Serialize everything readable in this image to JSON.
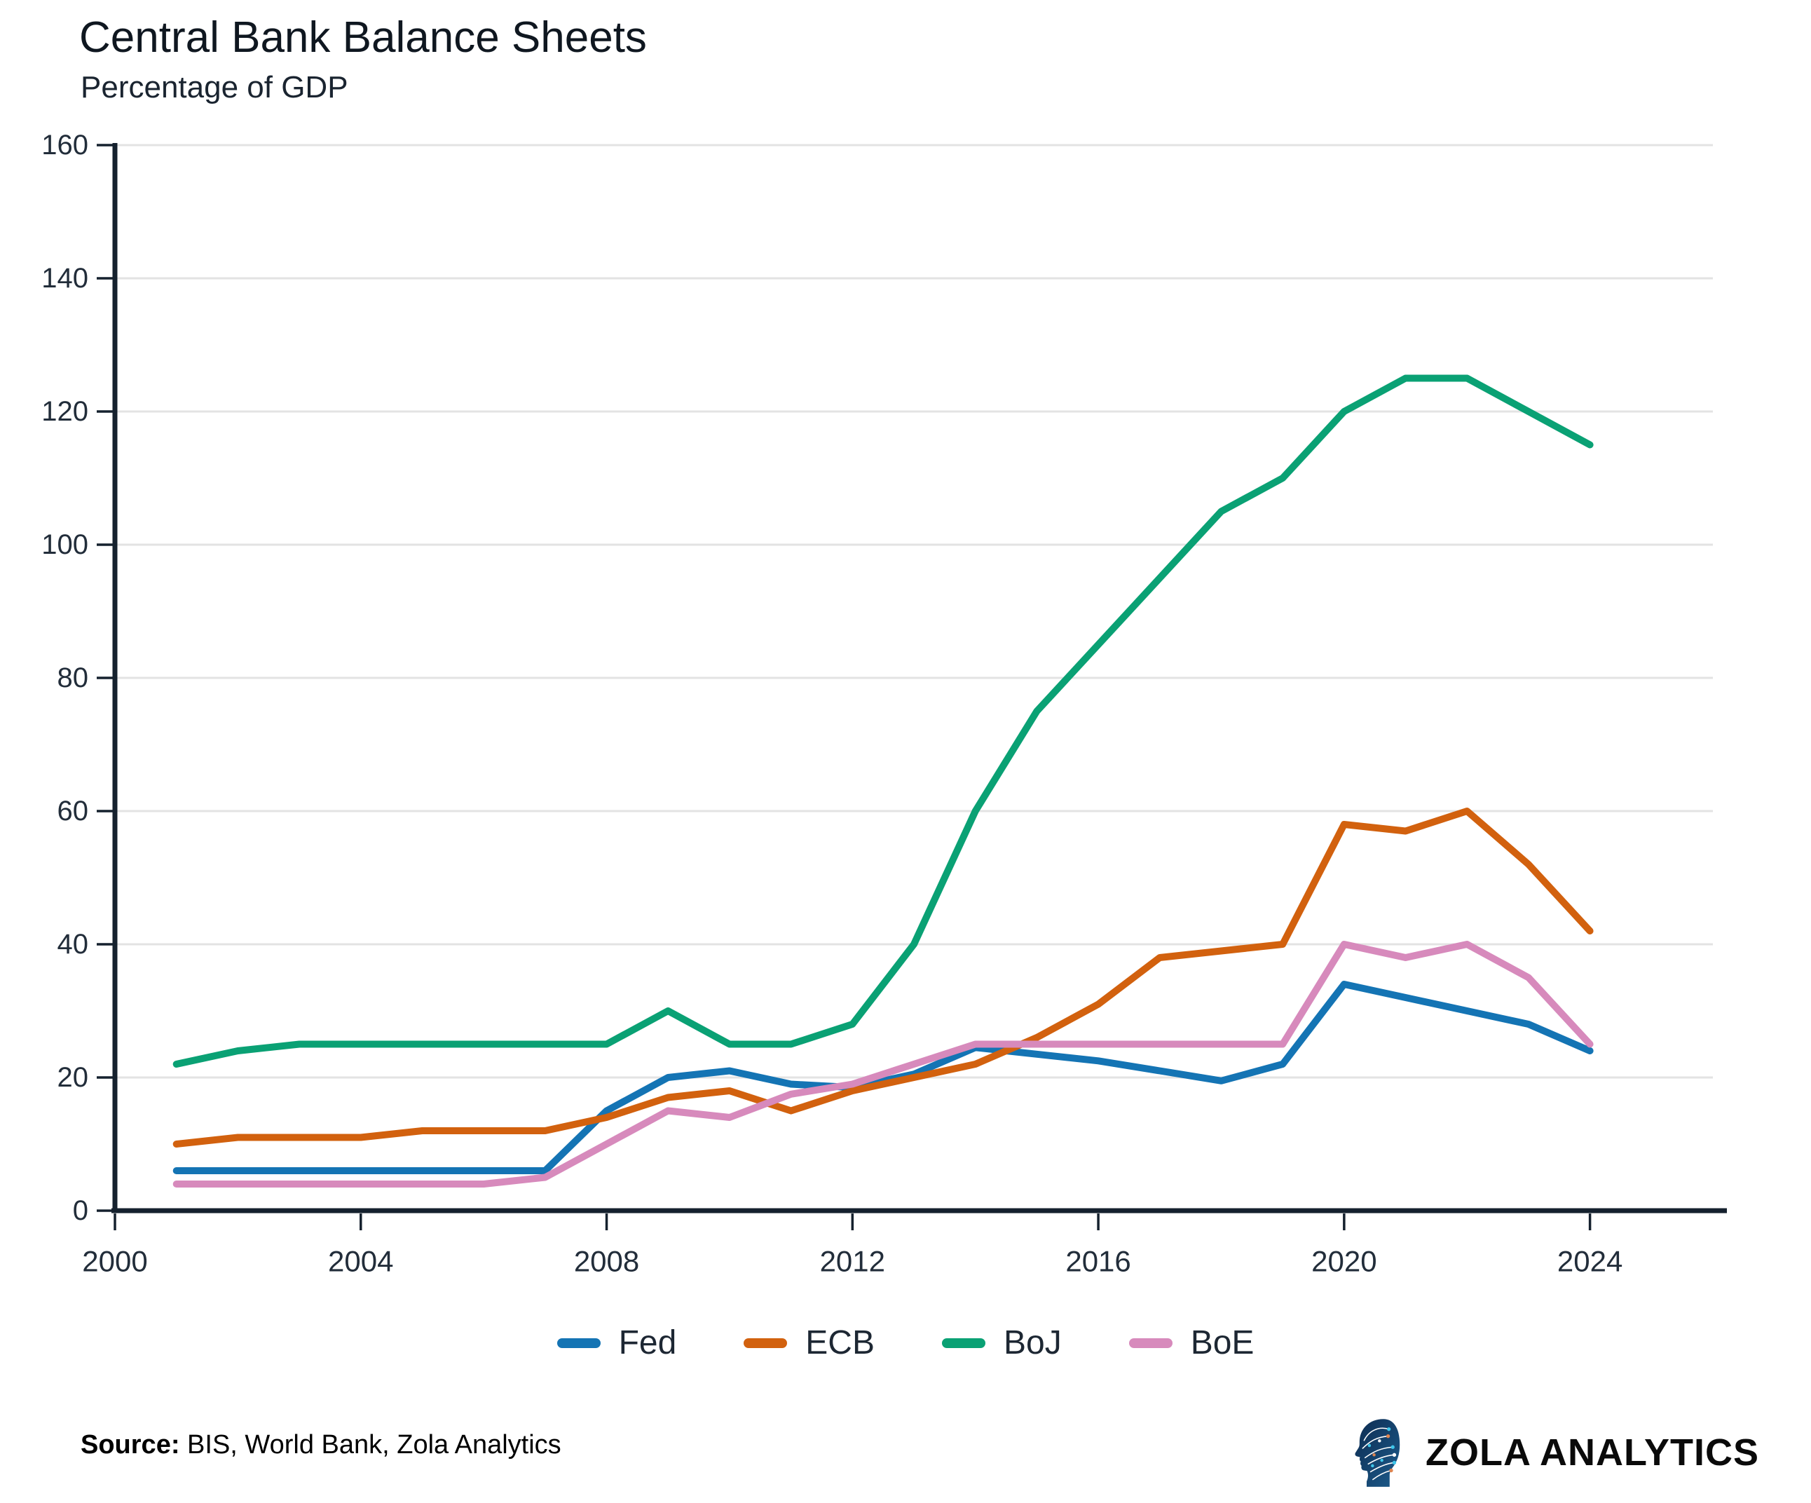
{
  "header": {
    "title": "Central Bank Balance Sheets",
    "subtitle": "Percentage of GDP"
  },
  "chart_data": {
    "type": "line",
    "x": [
      2001,
      2002,
      2003,
      2004,
      2005,
      2006,
      2007,
      2008,
      2009,
      2010,
      2011,
      2012,
      2013,
      2014,
      2015,
      2016,
      2017,
      2018,
      2019,
      2020,
      2021,
      2022,
      2023,
      2024
    ],
    "series": [
      {
        "name": "Fed",
        "color": "#1474b4",
        "values": [
          6,
          6,
          6,
          6,
          6,
          6,
          6,
          15,
          20,
          21,
          19,
          18.5,
          20.5,
          24.5,
          23.5,
          22.5,
          21,
          19.5,
          22,
          34,
          32,
          30,
          28,
          24
        ]
      },
      {
        "name": "ECB",
        "color": "#d2610e",
        "values": [
          10,
          11,
          11,
          11,
          12,
          12,
          12,
          14,
          17,
          18,
          15,
          18,
          20,
          22,
          26,
          31,
          38,
          39,
          40,
          58,
          57,
          60,
          52,
          42
        ]
      },
      {
        "name": "BoJ",
        "color": "#0aa174",
        "values": [
          22,
          24,
          25,
          25,
          25,
          25,
          25,
          25,
          30,
          25,
          25,
          28,
          40,
          60,
          75,
          85,
          95,
          105,
          110,
          120,
          125,
          125,
          120,
          115
        ]
      },
      {
        "name": "BoE",
        "color": "#d78abc",
        "values": [
          4,
          4,
          4,
          4,
          4,
          4,
          5,
          10,
          15,
          14,
          17.5,
          19,
          22,
          25,
          25,
          25,
          25,
          25,
          25,
          40,
          38,
          40,
          35,
          25
        ]
      }
    ],
    "title": "Central Bank Balance Sheets",
    "subtitle": "Percentage of GDP",
    "xlabel": "",
    "ylabel": "",
    "xlim": [
      2000,
      2026
    ],
    "ylim": [
      0,
      160
    ],
    "x_ticks": [
      2000,
      2004,
      2008,
      2012,
      2016,
      2020,
      2024
    ],
    "y_ticks": [
      0,
      20,
      40,
      60,
      80,
      100,
      120,
      140,
      160
    ],
    "grid": "horizontal",
    "legend_position": "bottom",
    "axis_color": "#15212e",
    "grid_color": "#e3e3e3",
    "tick_label_color": "#222d3a"
  },
  "footer": {
    "source_label": "Source:",
    "source_text": " BIS, World Bank, Zola Analytics",
    "brand_name": "ZOLA ANALYTICS",
    "logo_icon": "head-circuit-logo"
  }
}
